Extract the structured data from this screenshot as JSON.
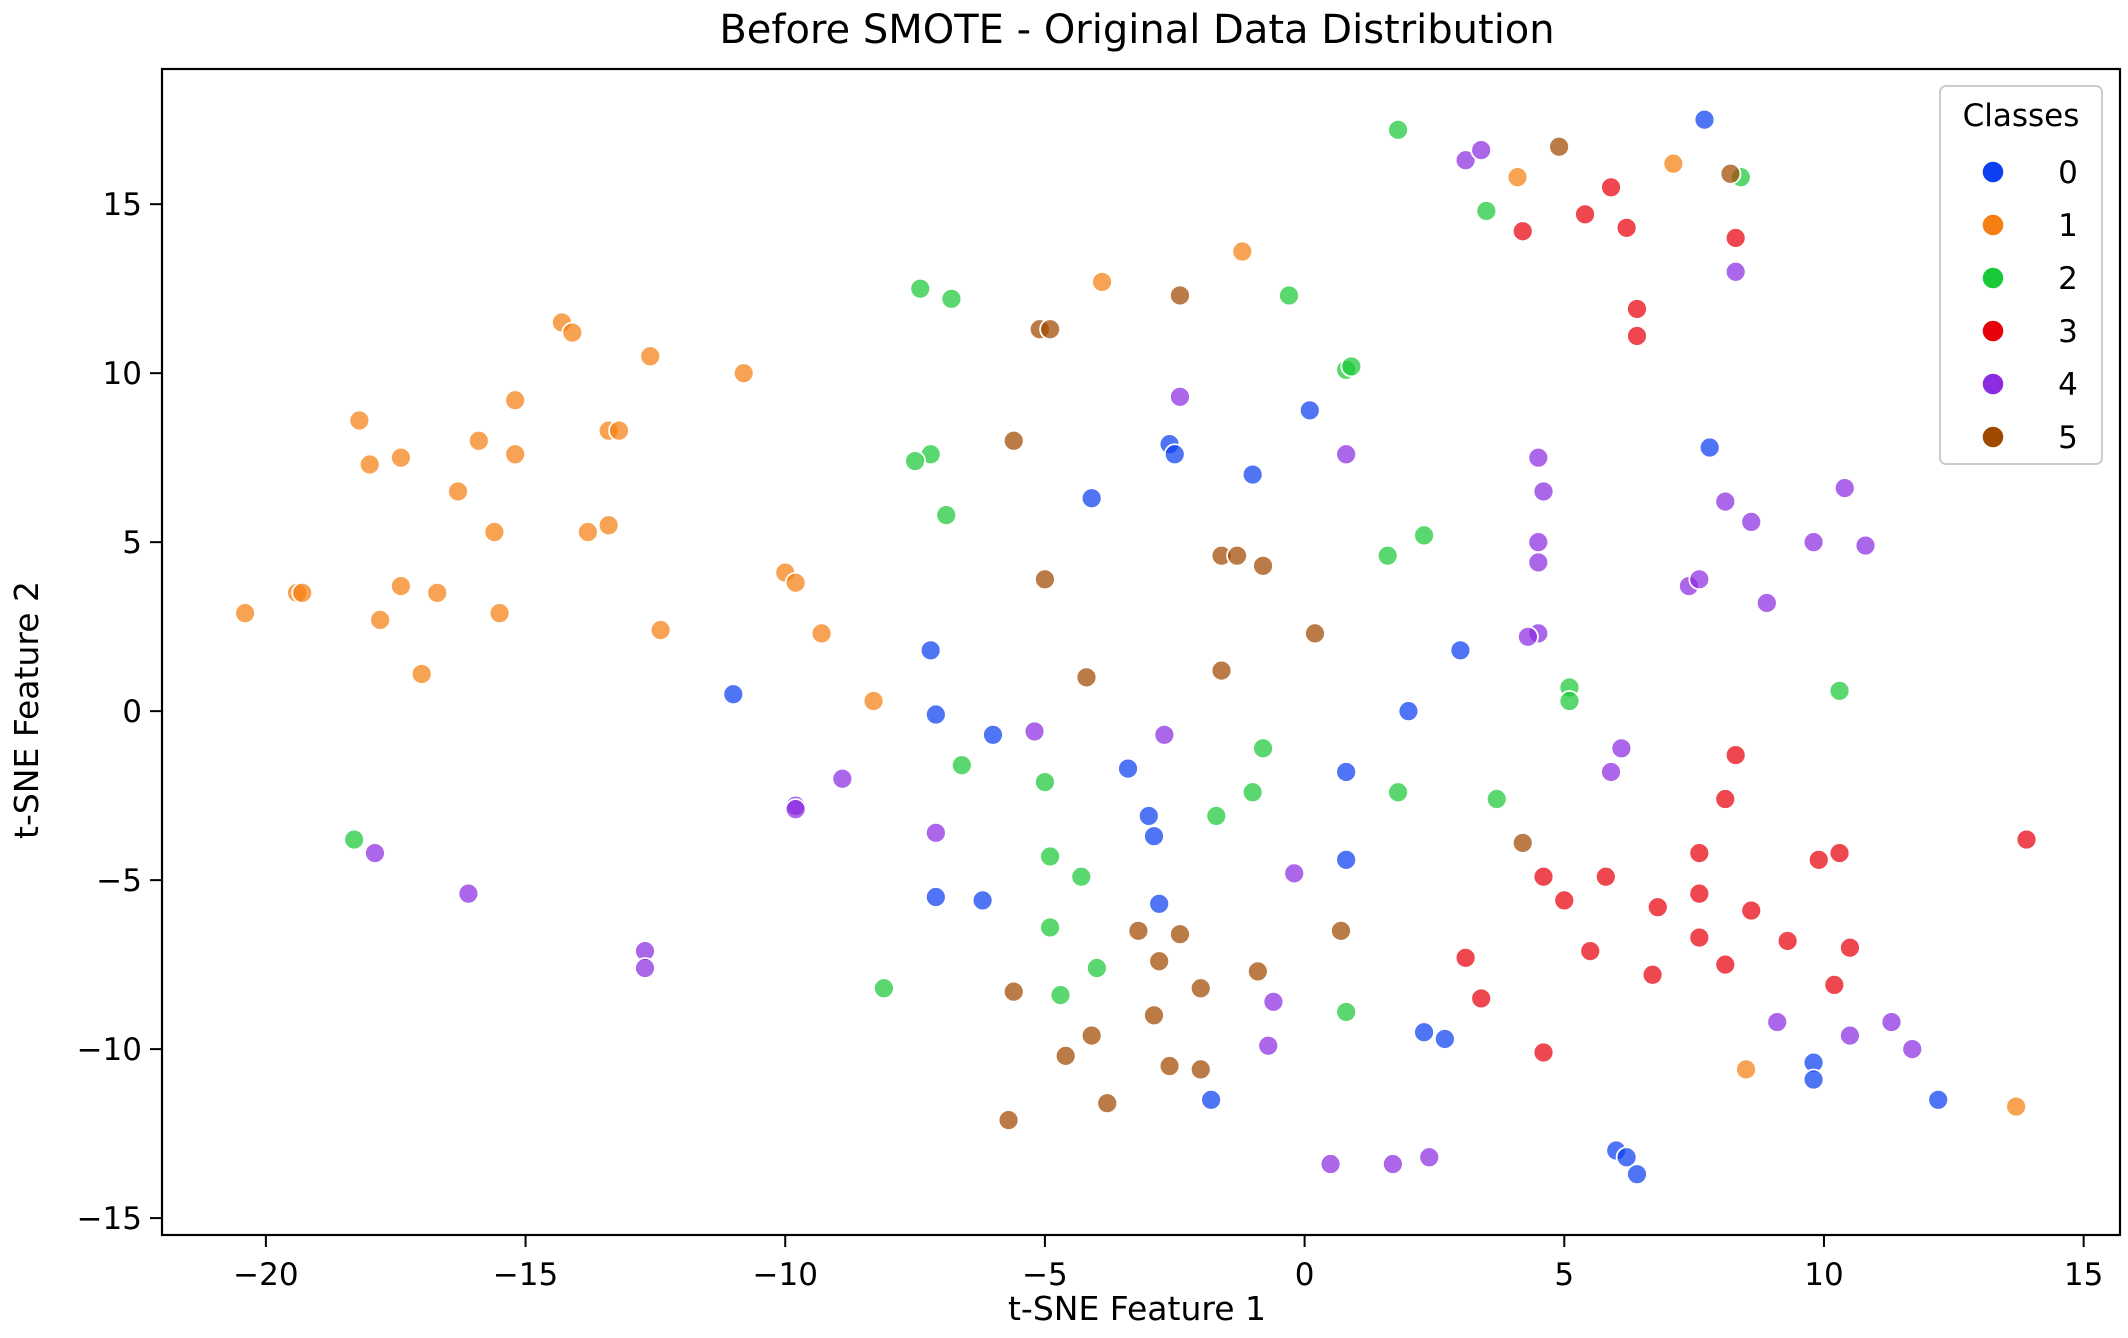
{
  "chart_data": {
    "type": "scatter",
    "title": "Before SMOTE - Original Data Distribution",
    "xlabel": "t-SNE Feature 1",
    "ylabel": "t-SNE Feature 2",
    "xlim": [
      -22,
      15.7
    ],
    "ylim": [
      -15.5,
      19.0
    ],
    "xticks": [
      -20,
      -15,
      -10,
      -5,
      0,
      5,
      10,
      15
    ],
    "yticks": [
      -15,
      -10,
      -5,
      0,
      5,
      10,
      15
    ],
    "tick_labels_x": [
      "−20",
      "−15",
      "−10",
      "−5",
      "0",
      "5",
      "10",
      "15"
    ],
    "tick_labels_y": [
      "−15",
      "−10",
      "−5",
      "0",
      "5",
      "10",
      "15"
    ],
    "grid": false,
    "legend": {
      "title": "Classes",
      "placement": "top-right"
    },
    "series": [
      {
        "name": "0",
        "color": "#0b3ff0",
        "points": [
          [
            7.7,
            17.5
          ],
          [
            0.1,
            8.9
          ],
          [
            -2.6,
            7.9
          ],
          [
            -2.5,
            7.6
          ],
          [
            -1.0,
            7.0
          ],
          [
            -4.1,
            6.3
          ],
          [
            7.8,
            7.8
          ],
          [
            -7.2,
            1.8
          ],
          [
            -7.1,
            -0.1
          ],
          [
            -11.0,
            0.5
          ],
          [
            -6.0,
            -0.7
          ],
          [
            2.0,
            0.0
          ],
          [
            3.0,
            1.8
          ],
          [
            -3.4,
            -1.7
          ],
          [
            -3.0,
            -3.1
          ],
          [
            -2.9,
            -3.7
          ],
          [
            0.8,
            -1.8
          ],
          [
            0.8,
            -4.4
          ],
          [
            -7.1,
            -5.5
          ],
          [
            -6.2,
            -5.6
          ],
          [
            -2.8,
            -5.7
          ],
          [
            2.3,
            -9.5
          ],
          [
            2.7,
            -9.7
          ],
          [
            -1.8,
            -11.5
          ],
          [
            9.8,
            -10.4
          ],
          [
            9.8,
            -10.9
          ],
          [
            12.2,
            -11.5
          ],
          [
            6.0,
            -13.0
          ],
          [
            6.2,
            -13.2
          ],
          [
            6.4,
            -13.7
          ]
        ]
      },
      {
        "name": "1",
        "color": "#f57f12",
        "points": [
          [
            4.1,
            15.8
          ],
          [
            7.1,
            16.2
          ],
          [
            -1.2,
            13.6
          ],
          [
            -3.9,
            12.7
          ],
          [
            -14.3,
            11.5
          ],
          [
            -14.1,
            11.2
          ],
          [
            -12.6,
            10.5
          ],
          [
            -10.8,
            10.0
          ],
          [
            -18.2,
            8.6
          ],
          [
            -15.2,
            9.2
          ],
          [
            -18.0,
            7.3
          ],
          [
            -17.4,
            7.5
          ],
          [
            -15.9,
            8.0
          ],
          [
            -15.2,
            7.6
          ],
          [
            -13.4,
            8.3
          ],
          [
            -13.2,
            8.3
          ],
          [
            -16.3,
            6.5
          ],
          [
            -15.6,
            5.3
          ],
          [
            -13.8,
            5.3
          ],
          [
            -13.4,
            5.5
          ],
          [
            -20.4,
            2.9
          ],
          [
            -19.4,
            3.5
          ],
          [
            -19.3,
            3.5
          ],
          [
            -17.8,
            2.7
          ],
          [
            -17.4,
            3.7
          ],
          [
            -16.7,
            3.5
          ],
          [
            -15.5,
            2.9
          ],
          [
            -12.4,
            2.4
          ],
          [
            -17.0,
            1.1
          ],
          [
            -10.0,
            4.1
          ],
          [
            -9.8,
            3.8
          ],
          [
            -9.3,
            2.3
          ],
          [
            -8.3,
            0.3
          ],
          [
            8.5,
            -10.6
          ],
          [
            13.7,
            -11.7
          ]
        ]
      },
      {
        "name": "2",
        "color": "#1ac938",
        "points": [
          [
            1.8,
            17.2
          ],
          [
            3.5,
            14.8
          ],
          [
            8.4,
            15.8
          ],
          [
            -7.4,
            12.5
          ],
          [
            -6.8,
            12.2
          ],
          [
            -0.3,
            12.3
          ],
          [
            0.8,
            10.1
          ],
          [
            0.9,
            10.2
          ],
          [
            -7.2,
            7.6
          ],
          [
            -7.5,
            7.4
          ],
          [
            -6.9,
            5.8
          ],
          [
            1.6,
            4.6
          ],
          [
            2.3,
            5.2
          ],
          [
            5.1,
            0.7
          ],
          [
            5.1,
            0.3
          ],
          [
            10.3,
            0.6
          ],
          [
            -0.8,
            -1.1
          ],
          [
            -6.6,
            -1.6
          ],
          [
            -5.0,
            -2.1
          ],
          [
            -1.0,
            -2.4
          ],
          [
            1.8,
            -2.4
          ],
          [
            3.7,
            -2.6
          ],
          [
            -1.7,
            -3.1
          ],
          [
            -18.3,
            -3.8
          ],
          [
            -4.9,
            -4.3
          ],
          [
            -4.3,
            -4.9
          ],
          [
            -4.9,
            -6.4
          ],
          [
            -4.0,
            -7.6
          ],
          [
            -8.1,
            -8.2
          ],
          [
            -4.7,
            -8.4
          ],
          [
            0.8,
            -8.9
          ]
        ]
      },
      {
        "name": "3",
        "color": "#e8000b",
        "points": [
          [
            5.9,
            15.5
          ],
          [
            5.4,
            14.7
          ],
          [
            4.2,
            14.2
          ],
          [
            6.2,
            14.3
          ],
          [
            8.3,
            14.0
          ],
          [
            6.4,
            11.9
          ],
          [
            6.4,
            11.1
          ],
          [
            8.3,
            -1.3
          ],
          [
            8.1,
            -2.6
          ],
          [
            7.6,
            -4.2
          ],
          [
            13.9,
            -3.8
          ],
          [
            9.9,
            -4.4
          ],
          [
            10.3,
            -4.2
          ],
          [
            4.6,
            -4.9
          ],
          [
            5.0,
            -5.6
          ],
          [
            5.8,
            -4.9
          ],
          [
            6.8,
            -5.8
          ],
          [
            7.6,
            -5.4
          ],
          [
            8.6,
            -5.9
          ],
          [
            7.6,
            -6.7
          ],
          [
            9.3,
            -6.8
          ],
          [
            10.5,
            -7.0
          ],
          [
            5.5,
            -7.1
          ],
          [
            3.1,
            -7.3
          ],
          [
            8.1,
            -7.5
          ],
          [
            6.7,
            -7.8
          ],
          [
            10.2,
            -8.1
          ],
          [
            3.4,
            -8.5
          ],
          [
            4.6,
            -10.1
          ]
        ]
      },
      {
        "name": "4",
        "color": "#8b2be2",
        "points": [
          [
            3.1,
            16.3
          ],
          [
            3.4,
            16.6
          ],
          [
            8.3,
            13.0
          ],
          [
            -2.4,
            9.3
          ],
          [
            0.8,
            7.6
          ],
          [
            4.5,
            7.5
          ],
          [
            4.6,
            6.5
          ],
          [
            10.4,
            6.6
          ],
          [
            8.1,
            6.2
          ],
          [
            8.6,
            5.6
          ],
          [
            10.8,
            4.9
          ],
          [
            9.8,
            5.0
          ],
          [
            4.5,
            5.0
          ],
          [
            4.5,
            4.4
          ],
          [
            7.4,
            3.7
          ],
          [
            7.6,
            3.9
          ],
          [
            8.9,
            3.2
          ],
          [
            4.5,
            2.3
          ],
          [
            4.3,
            2.2
          ],
          [
            -5.2,
            -0.6
          ],
          [
            -2.7,
            -0.7
          ],
          [
            6.1,
            -1.1
          ],
          [
            5.9,
            -1.8
          ],
          [
            -8.9,
            -2.0
          ],
          [
            -9.8,
            -2.8
          ],
          [
            -9.8,
            -2.9
          ],
          [
            -7.1,
            -3.6
          ],
          [
            -17.9,
            -4.2
          ],
          [
            -0.2,
            -4.8
          ],
          [
            -16.1,
            -5.4
          ],
          [
            -12.7,
            -7.1
          ],
          [
            -12.7,
            -7.6
          ],
          [
            -0.6,
            -8.6
          ],
          [
            -0.7,
            -9.9
          ],
          [
            9.1,
            -9.2
          ],
          [
            11.3,
            -9.2
          ],
          [
            10.5,
            -9.6
          ],
          [
            11.7,
            -10.0
          ],
          [
            0.5,
            -13.4
          ],
          [
            1.7,
            -13.4
          ],
          [
            2.4,
            -13.2
          ]
        ]
      },
      {
        "name": "5",
        "color": "#9f4800",
        "points": [
          [
            4.9,
            16.7
          ],
          [
            8.2,
            15.9
          ],
          [
            -5.1,
            11.3
          ],
          [
            -4.9,
            11.3
          ],
          [
            -2.4,
            12.3
          ],
          [
            -5.6,
            8.0
          ],
          [
            -1.6,
            4.6
          ],
          [
            -1.3,
            4.6
          ],
          [
            -0.8,
            4.3
          ],
          [
            -5.0,
            3.9
          ],
          [
            0.2,
            2.3
          ],
          [
            -4.2,
            1.0
          ],
          [
            -1.6,
            1.2
          ],
          [
            4.2,
            -3.9
          ],
          [
            -3.2,
            -6.5
          ],
          [
            -2.4,
            -6.6
          ],
          [
            0.7,
            -6.5
          ],
          [
            -2.8,
            -7.4
          ],
          [
            -0.9,
            -7.7
          ],
          [
            -5.6,
            -8.3
          ],
          [
            -2.0,
            -8.2
          ],
          [
            -2.9,
            -9.0
          ],
          [
            -4.1,
            -9.6
          ],
          [
            -4.6,
            -10.2
          ],
          [
            -2.6,
            -10.5
          ],
          [
            -2.0,
            -10.6
          ],
          [
            -3.8,
            -11.6
          ],
          [
            -5.7,
            -12.1
          ]
        ]
      }
    ]
  }
}
